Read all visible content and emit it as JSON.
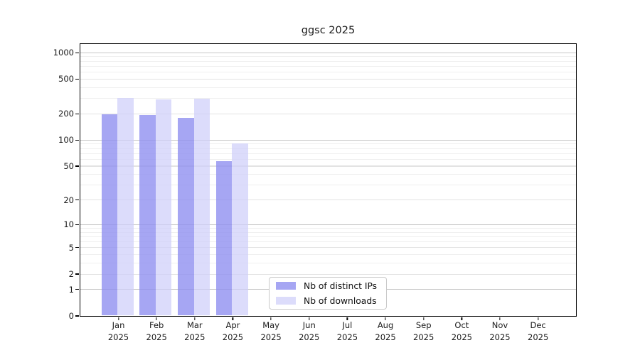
{
  "title": "ggsc 2025",
  "y_axis": {
    "ticks": [
      {
        "label": "1000",
        "value": 1000
      },
      {
        "label": "500",
        "value": 500
      },
      {
        "label": "200",
        "value": 200
      },
      {
        "label": "100",
        "value": 100
      },
      {
        "label": "50",
        "value": 50
      },
      {
        "label": "20",
        "value": 20
      },
      {
        "label": "10",
        "value": 10
      },
      {
        "label": "5",
        "value": 5
      },
      {
        "label": "2",
        "value": 2
      },
      {
        "label": "1",
        "value": 1
      },
      {
        "label": "0",
        "value": 0
      }
    ],
    "minor_grid_values": [
      3,
      4,
      6,
      7,
      8,
      9,
      30,
      40,
      60,
      70,
      80,
      90,
      300,
      400,
      600,
      700,
      800,
      900
    ]
  },
  "x_axis": {
    "months": [
      "Jan",
      "Feb",
      "Mar",
      "Apr",
      "May",
      "Jun",
      "Jul",
      "Aug",
      "Sep",
      "Oct",
      "Nov",
      "Dec"
    ],
    "year": "2025"
  },
  "legend": {
    "items": [
      {
        "label": "Nb of distinct IPs"
      },
      {
        "label": "Nb of downloads"
      }
    ]
  },
  "colors": {
    "ips_bar": "rgba(141,141,240,0.78)",
    "downloads_bar": "rgba(206,206,250,0.72)",
    "grid_major": "#c6c6c6",
    "grid_mid": "#e3e3e3",
    "grid_minor": "#efefef",
    "axis": "#000000",
    "text": "#1a1a1a"
  },
  "chart_data": {
    "type": "bar",
    "title": "ggsc 2025",
    "xlabel": "",
    "ylabel": "",
    "y_scale": "log1p",
    "grid": true,
    "legend_position": "lower center",
    "ylim": [
      0,
      1255
    ],
    "yticks": [
      0,
      1,
      2,
      5,
      10,
      20,
      50,
      100,
      200,
      500,
      1000
    ],
    "categories": [
      "Jan 2025",
      "Feb 2025",
      "Mar 2025",
      "Apr 2025",
      "May 2025",
      "Jun 2025",
      "Jul 2025",
      "Aug 2025",
      "Sep 2025",
      "Oct 2025",
      "Nov 2025",
      "Dec 2025"
    ],
    "series": [
      {
        "name": "Nb of distinct IPs",
        "values": [
          196,
          193,
          179,
          57,
          null,
          null,
          null,
          null,
          null,
          null,
          null,
          null
        ]
      },
      {
        "name": "Nb of downloads",
        "values": [
          303,
          289,
          298,
          90,
          null,
          null,
          null,
          null,
          null,
          null,
          null,
          null
        ]
      }
    ]
  }
}
